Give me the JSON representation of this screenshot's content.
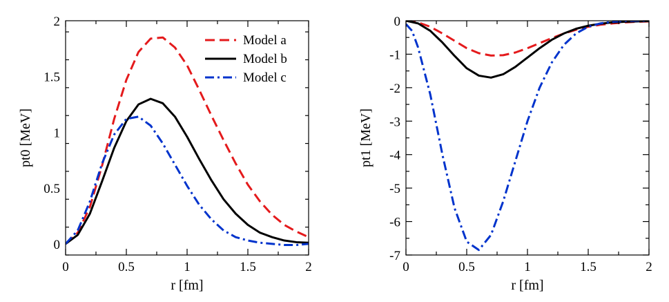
{
  "chart_data": [
    {
      "type": "line",
      "xlabel": "r [fm]",
      "ylabel": "pt0 [MeV]",
      "xlim": [
        0,
        2
      ],
      "ylim": [
        -0.1,
        2
      ],
      "xticks": [
        0,
        0.5,
        1,
        1.5,
        2
      ],
      "xtick_labels": [
        "0",
        "0.5",
        "1",
        "1.5",
        "2"
      ],
      "yticks": [
        0,
        0.5,
        1,
        1.5,
        2
      ],
      "ytick_labels": [
        "0",
        "0.5",
        "1",
        "1.5",
        "2"
      ],
      "grid": false,
      "legend_position": "top-right",
      "series": [
        {
          "name": "Model a",
          "color": "#e41a1c",
          "dash": "dashed",
          "x": [
            0,
            0.1,
            0.2,
            0.3,
            0.4,
            0.5,
            0.6,
            0.7,
            0.8,
            0.9,
            1.0,
            1.1,
            1.2,
            1.3,
            1.4,
            1.5,
            1.6,
            1.7,
            1.8,
            1.9,
            2.0
          ],
          "y": [
            0,
            0.1,
            0.33,
            0.7,
            1.12,
            1.47,
            1.72,
            1.84,
            1.85,
            1.76,
            1.6,
            1.38,
            1.15,
            0.93,
            0.72,
            0.53,
            0.38,
            0.26,
            0.17,
            0.11,
            0.06
          ]
        },
        {
          "name": "Model b",
          "color": "#000000",
          "dash": "solid",
          "x": [
            0,
            0.1,
            0.2,
            0.3,
            0.4,
            0.5,
            0.6,
            0.7,
            0.8,
            0.9,
            1.0,
            1.1,
            1.2,
            1.3,
            1.4,
            1.5,
            1.6,
            1.7,
            1.8,
            1.9,
            2.0
          ],
          "y": [
            0,
            0.08,
            0.27,
            0.56,
            0.86,
            1.1,
            1.25,
            1.3,
            1.26,
            1.14,
            0.96,
            0.76,
            0.57,
            0.4,
            0.27,
            0.17,
            0.1,
            0.06,
            0.03,
            0.015,
            0.01
          ]
        },
        {
          "name": "Model c",
          "color": "#0033cc",
          "dash": "dash-dot",
          "x": [
            0,
            0.1,
            0.2,
            0.3,
            0.4,
            0.5,
            0.6,
            0.7,
            0.8,
            0.9,
            1.0,
            1.1,
            1.2,
            1.3,
            1.4,
            1.5,
            1.6,
            1.7,
            1.8,
            1.9,
            2.0
          ],
          "y": [
            0,
            0.12,
            0.38,
            0.72,
            0.98,
            1.12,
            1.14,
            1.06,
            0.9,
            0.71,
            0.52,
            0.35,
            0.22,
            0.12,
            0.06,
            0.03,
            0.01,
            0.0,
            -0.01,
            -0.01,
            0.0
          ]
        }
      ]
    },
    {
      "type": "line",
      "xlabel": "r [fm]",
      "ylabel": "pt1 [MeV]",
      "xlim": [
        0,
        2
      ],
      "ylim": [
        -7,
        0
      ],
      "xticks": [
        0,
        0.5,
        1,
        1.5,
        2
      ],
      "xtick_labels": [
        "0",
        "0.5",
        "1",
        "1.5",
        "2"
      ],
      "yticks": [
        0,
        -1,
        -2,
        -3,
        -4,
        -5,
        -6,
        -7
      ],
      "ytick_labels": [
        "0",
        "-1",
        "-2",
        "-3",
        "-4",
        "-5",
        "-6",
        "-7"
      ],
      "grid": false,
      "series": [
        {
          "name": "Model a",
          "color": "#e41a1c",
          "dash": "dashed",
          "x": [
            0,
            0.1,
            0.2,
            0.3,
            0.4,
            0.5,
            0.6,
            0.7,
            0.8,
            0.9,
            1.0,
            1.1,
            1.2,
            1.3,
            1.4,
            1.5,
            1.6,
            1.7,
            1.8,
            1.9,
            2.0
          ],
          "y": [
            0,
            -0.05,
            -0.18,
            -0.38,
            -0.6,
            -0.82,
            -0.97,
            -1.04,
            -1.03,
            -0.95,
            -0.82,
            -0.67,
            -0.52,
            -0.38,
            -0.27,
            -0.18,
            -0.12,
            -0.08,
            -0.05,
            -0.03,
            -0.02
          ]
        },
        {
          "name": "Model b",
          "color": "#000000",
          "dash": "solid",
          "x": [
            0,
            0.1,
            0.2,
            0.3,
            0.4,
            0.5,
            0.6,
            0.7,
            0.8,
            0.9,
            1.0,
            1.1,
            1.2,
            1.3,
            1.4,
            1.5,
            1.6,
            1.7,
            1.8,
            1.9,
            2.0
          ],
          "y": [
            0,
            -0.08,
            -0.3,
            -0.65,
            -1.05,
            -1.42,
            -1.64,
            -1.7,
            -1.6,
            -1.38,
            -1.1,
            -0.82,
            -0.57,
            -0.38,
            -0.24,
            -0.15,
            -0.09,
            -0.05,
            -0.03,
            -0.02,
            -0.01
          ]
        },
        {
          "name": "Model c",
          "color": "#0033cc",
          "dash": "dash-dot",
          "x": [
            0,
            0.05,
            0.1,
            0.2,
            0.3,
            0.4,
            0.5,
            0.6,
            0.7,
            0.8,
            0.9,
            1.0,
            1.1,
            1.2,
            1.3,
            1.4,
            1.5,
            1.6,
            1.7,
            1.8,
            1.9,
            2.0
          ],
          "y": [
            -0.1,
            -0.3,
            -0.8,
            -2.2,
            -4.0,
            -5.6,
            -6.6,
            -6.85,
            -6.4,
            -5.4,
            -4.2,
            -3.0,
            -2.0,
            -1.25,
            -0.72,
            -0.38,
            -0.18,
            -0.08,
            -0.03,
            -0.01,
            0,
            0
          ]
        }
      ]
    }
  ]
}
